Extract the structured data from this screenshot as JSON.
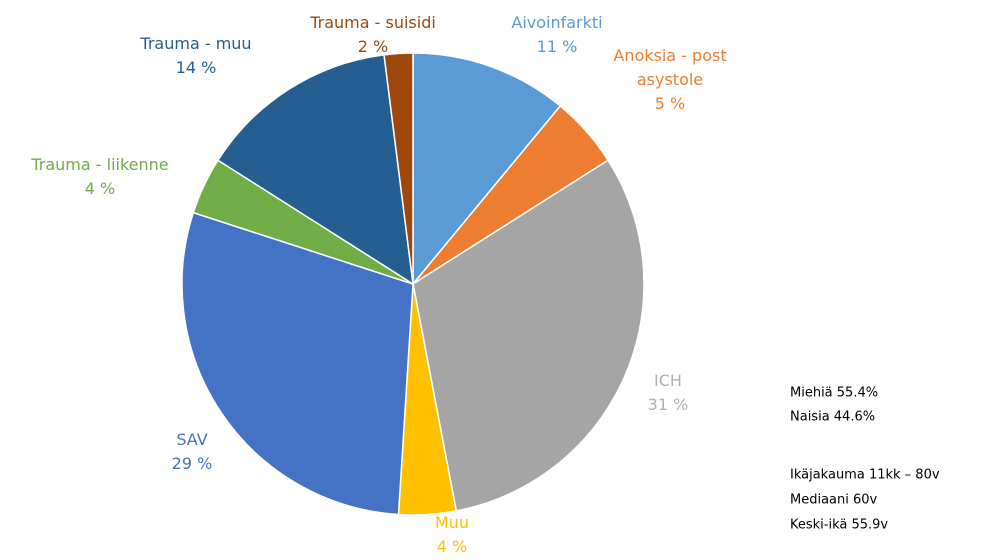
{
  "chart_data": {
    "type": "pie",
    "categories": [
      "Aivoinfarkti",
      "Anoksia - post asystole",
      "ICH",
      "Muu",
      "SAV",
      "Trauma - liikenne",
      "Trauma - muu",
      "Trauma - suisidi"
    ],
    "values": [
      11,
      5,
      31,
      4,
      29,
      4,
      14,
      2
    ],
    "value_labels": [
      "11 %",
      "5 %",
      "31 %",
      "4 %",
      "29 %",
      "4 %",
      "14 %",
      "2 %"
    ],
    "colors": [
      "#5b9bd5",
      "#ed7d31",
      "#a5a5a5",
      "#ffc000",
      "#4472c4",
      "#70ad47",
      "#255e91",
      "#9e480e"
    ],
    "annotations": [
      "Miehiä 55.4%",
      "Naisia 44.6%",
      "Ikäjakauma 11kk – 80v",
      "Mediaani 60v",
      "Keski-ikä 55.9v"
    ]
  }
}
